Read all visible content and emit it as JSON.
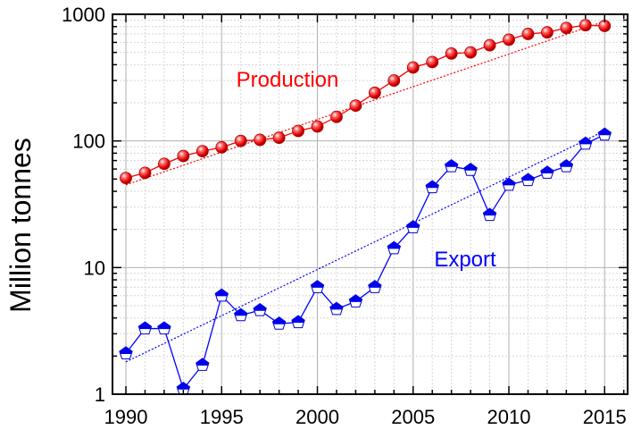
{
  "chart_data": {
    "type": "line",
    "ylabel": "Million tonnes",
    "xlabel": "",
    "xlim": [
      1989.3,
      2016.2
    ],
    "ylim": [
      1,
      1000
    ],
    "y_scale": "log",
    "grid": true,
    "x_ticks": [
      1990,
      1995,
      2000,
      2005,
      2010,
      2015
    ],
    "x_tick_labels": [
      "1990",
      "1995",
      "2000",
      "2005",
      "2010",
      "2015"
    ],
    "y_ticks": [
      1,
      10,
      100,
      1000
    ],
    "y_tick_labels": [
      "1",
      "10",
      "100",
      "1000"
    ],
    "x": [
      1990,
      1991,
      1992,
      1993,
      1994,
      1995,
      1996,
      1997,
      1998,
      1999,
      2000,
      2001,
      2002,
      2003,
      2004,
      2005,
      2006,
      2007,
      2008,
      2009,
      2010,
      2011,
      2012,
      2013,
      2014,
      2015
    ],
    "series": [
      {
        "name": "Production",
        "color": "#ff0000",
        "marker": "sphere",
        "values": [
          51,
          56,
          66,
          76,
          83,
          89,
          100,
          102,
          106,
          120,
          130,
          155,
          190,
          240,
          300,
          380,
          420,
          490,
          500,
          570,
          630,
          700,
          720,
          780,
          820,
          810
        ],
        "trend": [
          45,
          880
        ]
      },
      {
        "name": "Export",
        "color": "#0000ff",
        "marker": "pentagon",
        "values": [
          2.1,
          3.3,
          3.3,
          1.1,
          1.7,
          6.0,
          4.2,
          4.6,
          3.6,
          3.7,
          7.0,
          4.7,
          5.4,
          7.0,
          14.2,
          20.8,
          43,
          63,
          59,
          26,
          45,
          49,
          56,
          63,
          95,
          112
        ],
        "trend": [
          1.8,
          120
        ]
      }
    ]
  }
}
